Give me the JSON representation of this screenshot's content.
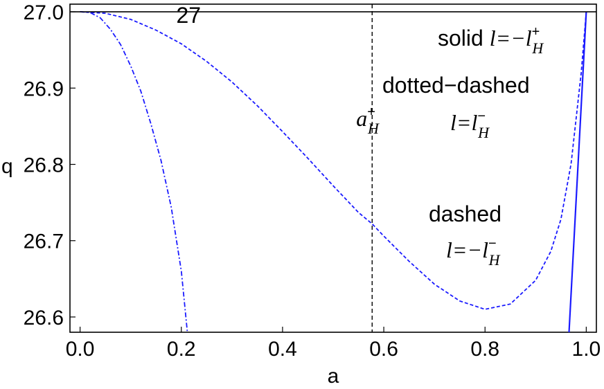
{
  "chart_data": {
    "type": "line",
    "xlabel": "a",
    "ylabel": "q",
    "xlim": [
      -0.02,
      1.02
    ],
    "ylim": [
      26.58,
      27.01
    ],
    "x_ticks": [
      "0.0",
      "0.2",
      "0.4",
      "0.6",
      "0.8",
      "1.0"
    ],
    "y_ticks": [
      "26.6",
      "26.7",
      "26.8",
      "26.9",
      "27.0"
    ],
    "x_tick_values": [
      0.0,
      0.2,
      0.4,
      0.6,
      0.8,
      1.0
    ],
    "y_tick_values": [
      26.6,
      26.7,
      26.8,
      26.9,
      27.0
    ],
    "grid": false,
    "colors": {
      "curves": "#1a1aff",
      "reference": "#000000"
    },
    "reference_line": {
      "y": 27.0,
      "label": "27"
    },
    "vline": {
      "x": 0.577,
      "label_main": "a",
      "label_sup": "+",
      "label_sub": "H"
    },
    "series": [
      {
        "style": "dotted-dashed",
        "x": [
          0.0,
          0.02,
          0.04,
          0.06,
          0.08,
          0.1,
          0.12,
          0.14,
          0.16,
          0.18,
          0.2,
          0.212
        ],
        "y": [
          27.0,
          26.999,
          26.992,
          26.977,
          26.957,
          26.929,
          26.896,
          26.853,
          26.805,
          26.744,
          26.66,
          26.58
        ]
      },
      {
        "style": "dashed",
        "x": [
          0.0,
          0.05,
          0.1,
          0.15,
          0.2,
          0.25,
          0.3,
          0.35,
          0.4,
          0.45,
          0.5,
          0.55,
          0.577,
          0.6,
          0.65,
          0.7,
          0.75,
          0.8,
          0.85,
          0.9,
          0.93,
          0.95,
          0.97,
          0.99,
          1.0
        ],
        "y": [
          27.0,
          26.998,
          26.99,
          26.976,
          26.958,
          26.935,
          26.908,
          26.877,
          26.843,
          26.808,
          26.772,
          26.737,
          26.722,
          26.706,
          26.673,
          26.643,
          26.621,
          26.61,
          26.617,
          26.648,
          26.686,
          26.728,
          26.801,
          26.92,
          27.0
        ]
      },
      {
        "style": "solid",
        "x": [
          0.966,
          1.0
        ],
        "y": [
          26.58,
          27.0
        ]
      }
    ],
    "annotations": [
      {
        "lines": [
          {
            "text": "solid ",
            "math": "l=−l",
            "sup": "+",
            "sub": "H"
          }
        ]
      },
      {
        "lines": [
          {
            "text": "dotted−dashed"
          },
          {
            "math": "l=l",
            "sup": "−",
            "sub": "H"
          }
        ]
      },
      {
        "lines": [
          {
            "text": "dashed"
          },
          {
            "math": "l=−l",
            "sup": "−",
            "sub": "H"
          }
        ]
      }
    ]
  }
}
